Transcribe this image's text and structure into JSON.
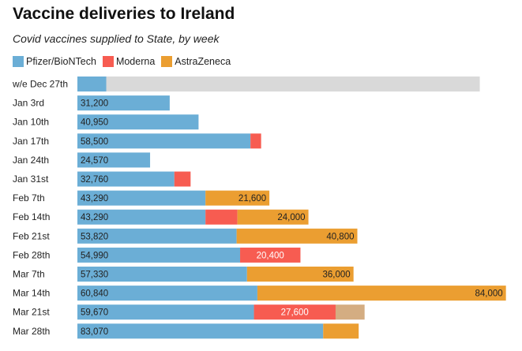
{
  "chart_data": {
    "type": "bar",
    "orientation": "horizontal",
    "stacked": true,
    "title": "Vaccine deliveries to Ireland",
    "subtitle": "Covid vaccines supplied to State, by week",
    "legend_position": "top-left",
    "categories": [
      "w/e Dec 27th",
      "Jan 3rd",
      "Jan 10th",
      "Jan 17th",
      "Jan 24th",
      "Jan 31st",
      "Feb 7th",
      "Feb 14th",
      "Feb 21st",
      "Feb 28th",
      "Mar 7th",
      "Mar 14th",
      "Mar 21st",
      "Mar 28th"
    ],
    "series": [
      {
        "name": "Pfizer/BioNTech",
        "color": "#6baed6",
        "label_color": "#222222",
        "values": [
          9750,
          31200,
          40950,
          58500,
          24570,
          32760,
          43290,
          43290,
          53820,
          54990,
          57330,
          60840,
          59670,
          83070
        ],
        "labels": [
          "",
          "31,200",
          "40,950",
          "58,500",
          "24,570",
          "32,760",
          "43,290",
          "43,290",
          "53,820",
          "54,990",
          "57,330",
          "60,840",
          "59,670",
          "83,070"
        ]
      },
      {
        "name": "Moderna",
        "color": "#f75c51",
        "label_color": "#ffffff",
        "values": [
          0,
          0,
          0,
          3600,
          0,
          5500,
          0,
          10800,
          0,
          20400,
          0,
          0,
          27600,
          0
        ],
        "labels": [
          "",
          "",
          "",
          "",
          "",
          "",
          "",
          "",
          "",
          "20,400",
          "",
          "",
          "27,600",
          ""
        ]
      },
      {
        "name": "AstraZeneca",
        "color": "#eb9e31",
        "label_color": "#222222",
        "values": [
          0,
          0,
          0,
          0,
          0,
          0,
          21600,
          24000,
          40800,
          0,
          36000,
          84000,
          0,
          12000
        ],
        "labels": [
          "",
          "",
          "",
          "",
          "",
          "",
          "21,600",
          "24,000",
          "40,800",
          "",
          "36,000",
          "84,000",
          "",
          ""
        ]
      }
    ],
    "other_segments": [
      {
        "category": "w/e Dec 27th",
        "value": 136000,
        "color": "#d9d9d9"
      },
      {
        "category": "Mar 21st",
        "value": 9800,
        "color": "#d4ad82"
      }
    ],
    "xlim": [
      0,
      146000
    ],
    "grid": false
  }
}
